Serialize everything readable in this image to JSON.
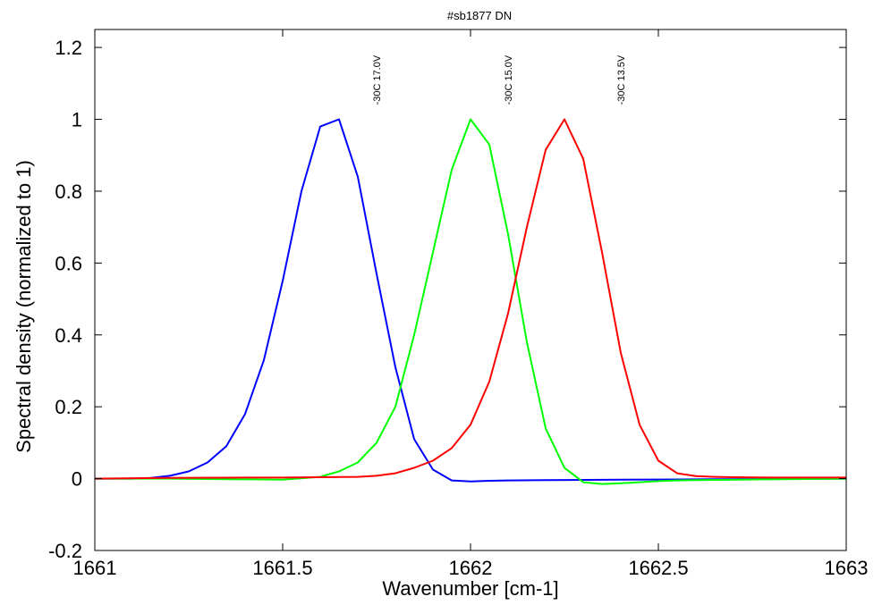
{
  "chart_data": {
    "type": "line",
    "title": "#sb1877 DN",
    "xlabel": "Wavenumber [cm-1]",
    "ylabel": "Spectral density (normalized to 1)",
    "xlim": [
      1661,
      1663
    ],
    "ylim": [
      -0.2,
      1.25
    ],
    "xticks": [
      1661,
      1661.5,
      1662,
      1662.5,
      1663
    ],
    "xtick_labels": [
      "1661",
      "1661.5",
      "1662",
      "1662.5",
      "1663"
    ],
    "yticks": [
      -0.2,
      0,
      0.2,
      0.4,
      0.6,
      0.8,
      1,
      1.2
    ],
    "ytick_labels": [
      "-0.2",
      "0",
      "0.2",
      "0.4",
      "0.6",
      "0.8",
      "1",
      "1.2"
    ],
    "grid": false,
    "series": [
      {
        "color": "#0000ff",
        "x": [
          1661,
          1661.05,
          1661.1,
          1661.15,
          1661.2,
          1661.25,
          1661.3,
          1661.35,
          1661.4,
          1661.45,
          1661.5,
          1661.55,
          1661.6,
          1661.65,
          1661.7,
          1661.75,
          1661.8,
          1661.85,
          1661.9,
          1661.95,
          1662,
          1662.05,
          1662.1,
          1662.2,
          1662.4,
          1662.6,
          1662.8,
          1663
        ],
        "y": [
          0,
          0,
          0,
          0.002,
          0.008,
          0.02,
          0.045,
          0.09,
          0.18,
          0.33,
          0.55,
          0.8,
          0.98,
          1.0,
          0.84,
          0.57,
          0.31,
          0.11,
          0.025,
          -0.005,
          -0.008,
          -0.006,
          -0.005,
          -0.004,
          -0.003,
          -0.002,
          -0.001,
          0
        ]
      },
      {
        "color": "#00ff00",
        "x": [
          1661,
          1661.2,
          1661.4,
          1661.5,
          1661.6,
          1661.65,
          1661.7,
          1661.75,
          1661.8,
          1661.85,
          1661.9,
          1661.95,
          1662,
          1662.05,
          1662.1,
          1662.15,
          1662.2,
          1662.25,
          1662.3,
          1662.35,
          1662.4,
          1662.45,
          1662.5,
          1662.55,
          1662.6,
          1662.8,
          1663
        ],
        "y": [
          0,
          0,
          -0.002,
          -0.003,
          0.005,
          0.02,
          0.045,
          0.1,
          0.2,
          0.4,
          0.63,
          0.86,
          1.0,
          0.93,
          0.68,
          0.38,
          0.14,
          0.03,
          -0.01,
          -0.015,
          -0.013,
          -0.01,
          -0.007,
          -0.005,
          -0.004,
          -0.002,
          0
        ]
      },
      {
        "color": "#ff0000",
        "x": [
          1661,
          1661.2,
          1661.4,
          1661.5,
          1661.6,
          1661.7,
          1661.75,
          1661.8,
          1661.85,
          1661.9,
          1661.95,
          1662,
          1662.05,
          1662.1,
          1662.15,
          1662.2,
          1662.25,
          1662.3,
          1662.35,
          1662.4,
          1662.45,
          1662.5,
          1662.55,
          1662.6,
          1662.65,
          1662.7,
          1662.8,
          1663
        ],
        "y": [
          0,
          0.002,
          0.003,
          0.003,
          0.004,
          0.005,
          0.008,
          0.015,
          0.03,
          0.05,
          0.085,
          0.15,
          0.27,
          0.46,
          0.7,
          0.915,
          1.0,
          0.89,
          0.63,
          0.35,
          0.15,
          0.05,
          0.015,
          0.007,
          0.005,
          0.004,
          0.003,
          0.003
        ]
      }
    ],
    "annotations": [
      {
        "text": "-30C 17.0V",
        "x": 1661.75,
        "y": 1.04,
        "rotation": -90
      },
      {
        "text": "-30C 15.0V",
        "x": 1662.1,
        "y": 1.04,
        "rotation": -90
      },
      {
        "text": "-30C 13.5V",
        "x": 1662.4,
        "y": 1.04,
        "rotation": -90
      }
    ]
  }
}
